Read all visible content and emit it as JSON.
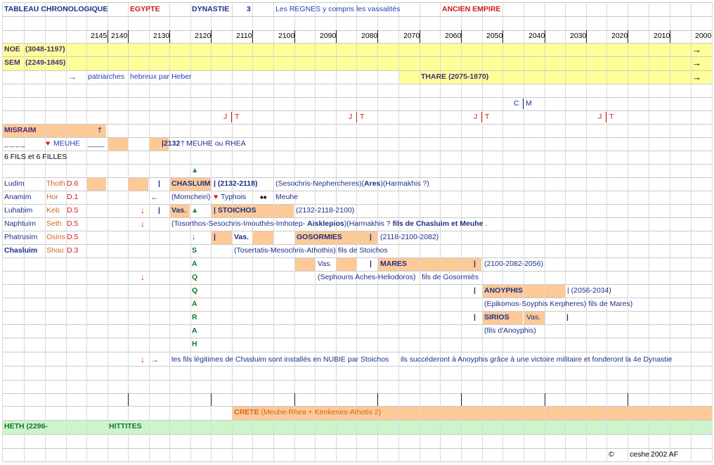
{
  "header": {
    "title": "TABLEAU CHRONOLOGIQUE",
    "country": "EGYPTE",
    "dynastie_label": "DYNASTIE",
    "dynastie_num": "3",
    "regnes": "Les REGNES y compris les vassalités",
    "empire": "ANCIEN EMPIRE"
  },
  "years": [
    "2145",
    "2140",
    "2130",
    "2120",
    "2110",
    "2100",
    "2090",
    "2080",
    "2070",
    "2060",
    "2050",
    "2040",
    "2030",
    "2020",
    "2010",
    "2000"
  ],
  "patriarchs": {
    "noe": "NOE",
    "noe_dates": "(3048-1197)",
    "sem": "SEM",
    "sem_dates": "(2249-1845)",
    "arrow": "→",
    "patriarches": "patriarches",
    "hebreux": "hebreux par Heber",
    "thare": "THARE (2075-1870)"
  },
  "markers": {
    "c": "C",
    "m": "M",
    "j": "J",
    "t": "T"
  },
  "misraim": {
    "name": "MISRAIM",
    "cross": "†",
    "heart": "♥",
    "meuhe": "MEUHE",
    "blank": "____",
    "death": "|2132",
    "cross2": "†",
    "meuhe_rhea": "MEUHE ou RHEA",
    "children": "6 FILS et 6 FILLES"
  },
  "sons": [
    {
      "name": "Ludim",
      "god": "Thoth",
      "d": "D.6"
    },
    {
      "name": "Anamim",
      "god": "Hor",
      "d": "D.1"
    },
    {
      "name": "Luhabim",
      "god": "Keb",
      "d": "D.5"
    },
    {
      "name": "Naphtuim",
      "god": "Seth",
      "d": "D.5"
    },
    {
      "name": "Phatrusim",
      "god": "Osiris",
      "d": "D.5"
    },
    {
      "name": "Chasluim",
      "god": "Shou",
      "d": "D.3"
    }
  ],
  "reigns": {
    "triangle": "▲",
    "bar": "|",
    "down_arrow": "↓",
    "left_arrow": "←",
    "right_arrow": "→",
    "chasluim": "CHASLUIM",
    "chasluim_dates": "| (2132-2118)",
    "chasluim_names": "(Sesochris-Nephercheres)(",
    "ares": "Ares",
    "harmakhis": ")(Harmakhis ?)",
    "momcheiri": "(Momcheiri)",
    "heart": "♥",
    "typhois": "Typhois",
    "spades": "♠♠",
    "meuhe": "Meuhe",
    "vas": "Vas.",
    "stoichos": "| STOICHOS",
    "stoichos_dates": "(2132-2118-2100)",
    "tosorthos": "(Tosorthos-Sesochris-Imouthès-Imhotep-",
    "aisklepios": "Aisklepios",
    "harmakhis2": ")(Harmakhis ? ",
    "fils_chasluim": "fils de Chasluim et Meuhe",
    "dot": ".",
    "gosormies": "GOSORMIES",
    "gosormies_dates": "(2118-2100-2082)",
    "tosertatis": "(Tosertatis-Mesochris-Athothis)",
    "fils_stoichos": "fils de Stoichos",
    "mares": "MARES",
    "mares_dates": "(2100-2082-2056)",
    "sephouris": "(Sephouris Aches-Heliodoros)",
    "fils_gosormies": "fils de Gosormiès",
    "anoyphis": "ANOYPHIS",
    "anoyphis_dates": "| (2056-2034)",
    "epikomos": "(Epikomos-Soyphis Kerpheres) fils de Mares)",
    "sirios": "SIRIOS",
    "fils_anoyphis": "(fils d'Anoyphis)",
    "saqqarah": [
      "S",
      "A",
      "Q",
      "Q",
      "A",
      "R",
      "A",
      "H"
    ],
    "green_arrow": "↓",
    "nubie": "les fils légitimes de Chasluim sont installés en NUBIE par Stoichos",
    "succederont": "ils succéderont à Anoyphis grâce à une victoire militaire et fonderont la 4e Dynastie"
  },
  "crete": {
    "label": "CRETE",
    "detail": "(Meuhe-Rhea + Kenkenes-Athotis 2)"
  },
  "heth": {
    "label": "HETH (2296-",
    "hittites": "HITTITES"
  },
  "footer": {
    "copyright": "©",
    "author": "ceshe",
    "year": "2002 AF"
  },
  "colors": {
    "yellow": "#ffff99",
    "peach": "#fcc997",
    "green": "#ccf5cc",
    "navy": "#1f2f86",
    "red": "#d01818",
    "orange": "#d2661a"
  }
}
